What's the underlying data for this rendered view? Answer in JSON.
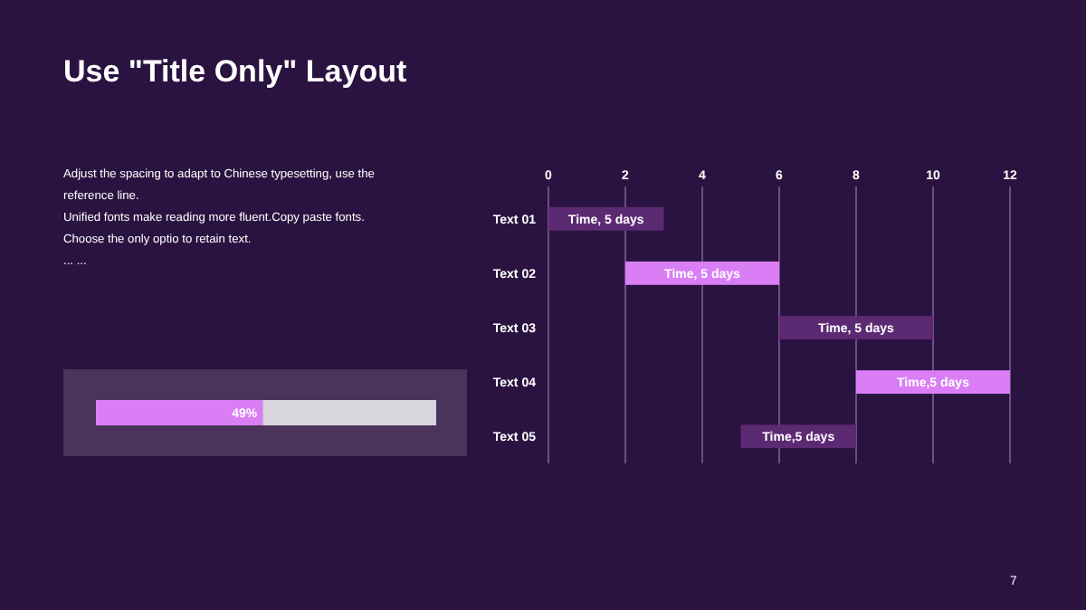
{
  "chart_data": [
    {
      "type": "other",
      "title": "Use \"Title Only\" Layout",
      "annotations": [
        "Adjust the spacing to adapt to Chinese typesetting, use the reference line.",
        "Unified fonts make reading more fluent.Copy paste fonts.",
        "Choose the only optio to retain text.",
        "... ...",
        "7"
      ]
    },
    {
      "type": "bar",
      "orientation": "horizontal",
      "categories": [
        "Text 01",
        "Text 02",
        "Text 03",
        "Text 04",
        "Text 05"
      ],
      "base": [
        0,
        2,
        6,
        8,
        5
      ],
      "values": [
        3,
        4,
        4,
        4,
        3
      ],
      "colors": [
        "#5c2a72",
        "#d97ef5",
        "#5c2a72",
        "#d97ef5",
        "#5c2a72"
      ],
      "annotations": [
        "Time, 5 days",
        "Time, 5 days",
        "Time, 5 days",
        "Time,5 days",
        "Time,5 days"
      ],
      "xlim": [
        0,
        12
      ],
      "xticks": [
        0,
        2,
        4,
        6,
        8,
        10,
        12
      ],
      "grid": "x"
    },
    {
      "type": "bar",
      "orientation": "horizontal",
      "stacked": true,
      "categories": [
        null
      ],
      "series": [
        {
          "color": "#d97ef5",
          "values": [
            49
          ],
          "value_labels": [
            "49%"
          ]
        },
        {
          "color": "#d9d5dd",
          "values": [
            51
          ]
        }
      ],
      "xlim": [
        0,
        100
      ],
      "tick_labels": false
    }
  ]
}
